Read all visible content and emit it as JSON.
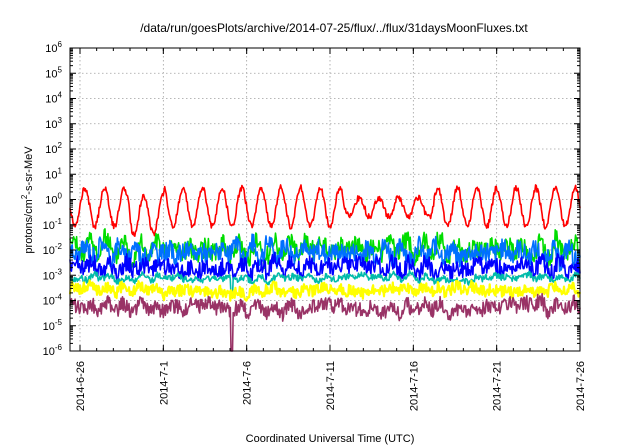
{
  "chart_data": {
    "type": "line",
    "title": "/data/run/goesPlots/archive/2014-07-25/flux/../flux/31daysMoonFluxes.txt",
    "xlabel": "Coordinated Universal Time (UTC)",
    "ylabel": "protons/cm²-s-sr-MeV",
    "ylabel_parts": {
      "base": "protons/cm",
      "sup": "2",
      "rest": "-s-sr-MeV"
    },
    "yscale": "log",
    "ylim_exp": [
      -6,
      6
    ],
    "y_ticks": [
      {
        "base": "10",
        "exp": "-6"
      },
      {
        "base": "10",
        "exp": "-5"
      },
      {
        "base": "10",
        "exp": "-4"
      },
      {
        "base": "10",
        "exp": "-3"
      },
      {
        "base": "10",
        "exp": "-2"
      },
      {
        "base": "10",
        "exp": "-1"
      },
      {
        "base": "10",
        "exp": "0"
      },
      {
        "base": "10",
        "exp": "1"
      },
      {
        "base": "10",
        "exp": "2"
      },
      {
        "base": "10",
        "exp": "3"
      },
      {
        "base": "10",
        "exp": "4"
      },
      {
        "base": "10",
        "exp": "5"
      },
      {
        "base": "10",
        "exp": "6"
      }
    ],
    "xlim_days": [
      -0.6,
      30
    ],
    "x_ticks": [
      {
        "label": "2014-6-26",
        "day": 0
      },
      {
        "label": "2014-7-1",
        "day": 5
      },
      {
        "label": "2014-7-6",
        "day": 10
      },
      {
        "label": "2014-7-11",
        "day": 15
      },
      {
        "label": "2014-7-16",
        "day": 20
      },
      {
        "label": "2014-7-21",
        "day": 25
      },
      {
        "label": "2014-7-26",
        "day": 30
      }
    ],
    "grid": true,
    "series": [
      {
        "color": "#ff0000",
        "base": 0.5,
        "amp": 1.7,
        "noise": 0.3,
        "seed": 11
      },
      {
        "color": "#00dd00",
        "base": 0.012,
        "amp": 1.1,
        "noise": 0.8,
        "seed": 23
      },
      {
        "color": "#0070ff",
        "base": 0.008,
        "amp": 0.9,
        "noise": 0.8,
        "seed": 31
      },
      {
        "color": "#0000ff",
        "base": 0.0022,
        "amp": 0.6,
        "noise": 0.7,
        "seed": 47
      },
      {
        "color": "#00bbaa",
        "base": 0.0008,
        "amp": 0.3,
        "noise": 0.25,
        "seed": 53
      },
      {
        "color": "#ffff00",
        "base": 0.00025,
        "amp": 0.3,
        "noise": 0.45,
        "seed": 61
      },
      {
        "color": "#993366",
        "base": 5e-05,
        "amp": 0.5,
        "noise": 0.6,
        "seed": 73
      }
    ]
  }
}
